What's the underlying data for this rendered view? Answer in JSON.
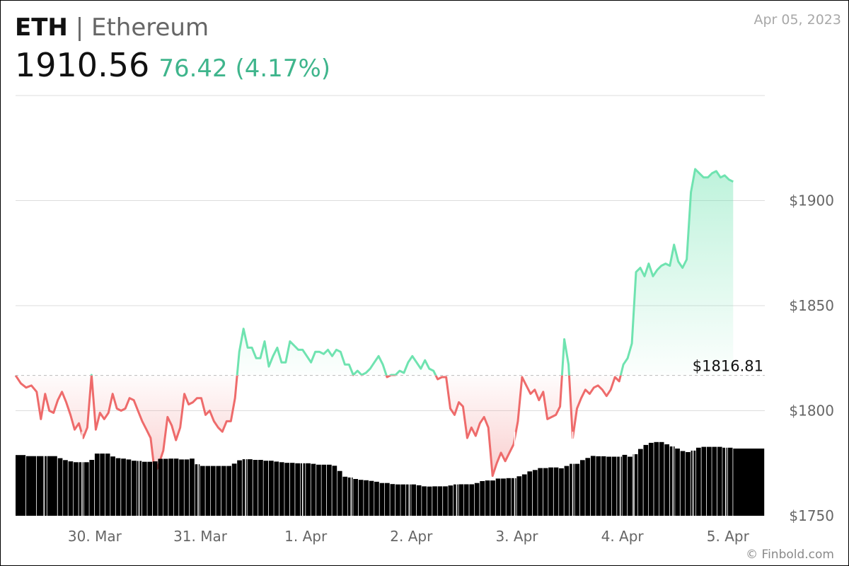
{
  "header": {
    "symbol": "ETH",
    "separator": "|",
    "name": "Ethereum",
    "price": "1910.56",
    "change": "76.42 (4.17%)",
    "date": "Apr 05, 2023"
  },
  "footer": {
    "credit": "© Finbold.com"
  },
  "colors": {
    "up": "#6fe3b0",
    "down": "#ee6b6b",
    "volume": "#000000",
    "grid": "#dddddd",
    "axis_text": "#666666"
  },
  "chart_data": {
    "type": "line",
    "ylim": [
      1750,
      1950
    ],
    "y_ticks": [
      1750,
      1800,
      1850,
      1900
    ],
    "y_tick_labels": [
      "$1750",
      "$1800",
      "$1850",
      "$1900"
    ],
    "x_range": [
      0,
      7.1
    ],
    "x_ticks": [
      0.75,
      1.75,
      2.75,
      3.75,
      4.75,
      5.75,
      6.75
    ],
    "x_tick_labels": [
      "30. Mar",
      "31. Mar",
      "1. Apr",
      "2. Apr",
      "3. Apr",
      "4. Apr",
      "5. Apr"
    ],
    "baseline": 1816.81,
    "baseline_label": "$1816.81",
    "price_series": [
      [
        0.0,
        1816.8
      ],
      [
        0.05,
        1813
      ],
      [
        0.1,
        1811
      ],
      [
        0.15,
        1812
      ],
      [
        0.2,
        1809
      ],
      [
        0.24,
        1796
      ],
      [
        0.28,
        1808
      ],
      [
        0.32,
        1800
      ],
      [
        0.36,
        1799
      ],
      [
        0.4,
        1805
      ],
      [
        0.44,
        1809
      ],
      [
        0.48,
        1804
      ],
      [
        0.52,
        1798
      ],
      [
        0.56,
        1791
      ],
      [
        0.6,
        1794
      ],
      [
        0.64,
        1787
      ],
      [
        0.68,
        1792
      ],
      [
        0.72,
        1817
      ],
      [
        0.76,
        1791
      ],
      [
        0.8,
        1799
      ],
      [
        0.84,
        1796
      ],
      [
        0.88,
        1799
      ],
      [
        0.92,
        1808
      ],
      [
        0.96,
        1801
      ],
      [
        1.0,
        1800
      ],
      [
        1.04,
        1801
      ],
      [
        1.08,
        1806
      ],
      [
        1.12,
        1805
      ],
      [
        1.16,
        1800
      ],
      [
        1.2,
        1795
      ],
      [
        1.24,
        1791
      ],
      [
        1.28,
        1787
      ],
      [
        1.32,
        1770
      ],
      [
        1.36,
        1775
      ],
      [
        1.4,
        1781
      ],
      [
        1.44,
        1797
      ],
      [
        1.48,
        1793
      ],
      [
        1.52,
        1786
      ],
      [
        1.56,
        1792
      ],
      [
        1.6,
        1808
      ],
      [
        1.64,
        1803
      ],
      [
        1.68,
        1804
      ],
      [
        1.72,
        1806
      ],
      [
        1.76,
        1806
      ],
      [
        1.8,
        1798
      ],
      [
        1.84,
        1800
      ],
      [
        1.88,
        1795
      ],
      [
        1.92,
        1792
      ],
      [
        1.96,
        1790
      ],
      [
        2.0,
        1795
      ],
      [
        2.04,
        1795
      ],
      [
        2.08,
        1806
      ],
      [
        2.12,
        1828
      ],
      [
        2.16,
        1839
      ],
      [
        2.2,
        1830
      ],
      [
        2.24,
        1830
      ],
      [
        2.28,
        1825
      ],
      [
        2.32,
        1825
      ],
      [
        2.36,
        1833
      ],
      [
        2.4,
        1821
      ],
      [
        2.44,
        1826
      ],
      [
        2.48,
        1830
      ],
      [
        2.52,
        1823
      ],
      [
        2.56,
        1823
      ],
      [
        2.6,
        1833
      ],
      [
        2.64,
        1831
      ],
      [
        2.68,
        1829
      ],
      [
        2.72,
        1829
      ],
      [
        2.76,
        1826
      ],
      [
        2.8,
        1823
      ],
      [
        2.84,
        1828
      ],
      [
        2.88,
        1828
      ],
      [
        2.92,
        1827
      ],
      [
        2.96,
        1829
      ],
      [
        3.0,
        1826
      ],
      [
        3.04,
        1829
      ],
      [
        3.08,
        1828
      ],
      [
        3.12,
        1822
      ],
      [
        3.16,
        1822
      ],
      [
        3.2,
        1817
      ],
      [
        3.24,
        1819
      ],
      [
        3.28,
        1817
      ],
      [
        3.32,
        1818
      ],
      [
        3.36,
        1820
      ],
      [
        3.4,
        1823
      ],
      [
        3.44,
        1826
      ],
      [
        3.48,
        1822
      ],
      [
        3.52,
        1816
      ],
      [
        3.56,
        1817
      ],
      [
        3.6,
        1817
      ],
      [
        3.64,
        1819
      ],
      [
        3.68,
        1818
      ],
      [
        3.72,
        1823
      ],
      [
        3.76,
        1826
      ],
      [
        3.8,
        1823
      ],
      [
        3.84,
        1820
      ],
      [
        3.88,
        1824
      ],
      [
        3.92,
        1820
      ],
      [
        3.96,
        1819
      ],
      [
        4.0,
        1815
      ],
      [
        4.04,
        1816
      ],
      [
        4.08,
        1816
      ],
      [
        4.12,
        1801
      ],
      [
        4.16,
        1798
      ],
      [
        4.2,
        1804
      ],
      [
        4.24,
        1802
      ],
      [
        4.28,
        1787
      ],
      [
        4.32,
        1792
      ],
      [
        4.36,
        1788
      ],
      [
        4.4,
        1794
      ],
      [
        4.44,
        1797
      ],
      [
        4.48,
        1792
      ],
      [
        4.52,
        1769
      ],
      [
        4.56,
        1775
      ],
      [
        4.6,
        1780
      ],
      [
        4.64,
        1776
      ],
      [
        4.68,
        1780
      ],
      [
        4.72,
        1784
      ],
      [
        4.76,
        1795
      ],
      [
        4.8,
        1816
      ],
      [
        4.84,
        1812
      ],
      [
        4.88,
        1808
      ],
      [
        4.92,
        1810
      ],
      [
        4.96,
        1805
      ],
      [
        5.0,
        1809
      ],
      [
        5.04,
        1796
      ],
      [
        5.08,
        1797
      ],
      [
        5.12,
        1798
      ],
      [
        5.16,
        1802
      ],
      [
        5.2,
        1834
      ],
      [
        5.24,
        1822
      ],
      [
        5.28,
        1787
      ],
      [
        5.32,
        1801
      ],
      [
        5.36,
        1806
      ],
      [
        5.4,
        1810
      ],
      [
        5.44,
        1808
      ],
      [
        5.48,
        1811
      ],
      [
        5.52,
        1812
      ],
      [
        5.56,
        1810
      ],
      [
        5.6,
        1807
      ],
      [
        5.64,
        1810
      ],
      [
        5.68,
        1816
      ],
      [
        5.72,
        1814
      ],
      [
        5.76,
        1822
      ],
      [
        5.8,
        1825
      ],
      [
        5.84,
        1832
      ],
      [
        5.88,
        1866
      ],
      [
        5.92,
        1868
      ],
      [
        5.96,
        1864
      ],
      [
        6.0,
        1870
      ],
      [
        6.04,
        1864
      ],
      [
        6.08,
        1867
      ],
      [
        6.12,
        1869
      ],
      [
        6.16,
        1870
      ],
      [
        6.2,
        1869
      ],
      [
        6.24,
        1879
      ],
      [
        6.28,
        1871
      ],
      [
        6.32,
        1868
      ],
      [
        6.36,
        1872
      ],
      [
        6.4,
        1904
      ],
      [
        6.44,
        1915
      ],
      [
        6.48,
        1913
      ],
      [
        6.52,
        1911
      ],
      [
        6.56,
        1911
      ],
      [
        6.6,
        1913
      ],
      [
        6.64,
        1914
      ],
      [
        6.68,
        1911
      ],
      [
        6.72,
        1912
      ],
      [
        6.76,
        1910
      ],
      [
        6.8,
        1909
      ]
    ],
    "volume_series": [
      [
        0.0,
        28.9
      ],
      [
        0.1,
        28.4
      ],
      [
        0.2,
        28.4
      ],
      [
        0.3,
        28.4
      ],
      [
        0.4,
        27.4
      ],
      [
        0.45,
        26.5
      ],
      [
        0.5,
        25.9
      ],
      [
        0.55,
        25.5
      ],
      [
        0.6,
        25.5
      ],
      [
        0.65,
        25.5
      ],
      [
        0.7,
        26.6
      ],
      [
        0.75,
        29.6
      ],
      [
        0.8,
        29.6
      ],
      [
        0.85,
        29.6
      ],
      [
        0.9,
        28.2
      ],
      [
        0.95,
        27.4
      ],
      [
        1.0,
        27.2
      ],
      [
        1.05,
        26.8
      ],
      [
        1.1,
        26.2
      ],
      [
        1.15,
        26.1
      ],
      [
        1.2,
        25.7
      ],
      [
        1.25,
        25.7
      ],
      [
        1.3,
        25.9
      ],
      [
        1.35,
        27.1
      ],
      [
        1.4,
        27.1
      ],
      [
        1.45,
        27.2
      ],
      [
        1.5,
        27.2
      ],
      [
        1.55,
        26.8
      ],
      [
        1.6,
        26.8
      ],
      [
        1.65,
        27.2
      ],
      [
        1.7,
        24.5
      ],
      [
        1.75,
        23.7
      ],
      [
        1.8,
        23.7
      ],
      [
        1.85,
        23.7
      ],
      [
        1.9,
        23.7
      ],
      [
        1.95,
        23.7
      ],
      [
        2.0,
        23.7
      ],
      [
        2.05,
        24.8
      ],
      [
        2.1,
        26.4
      ],
      [
        2.15,
        26.9
      ],
      [
        2.2,
        26.9
      ],
      [
        2.25,
        26.6
      ],
      [
        2.3,
        26.6
      ],
      [
        2.35,
        26.2
      ],
      [
        2.4,
        26.2
      ],
      [
        2.45,
        25.8
      ],
      [
        2.5,
        25.5
      ],
      [
        2.55,
        25.2
      ],
      [
        2.6,
        25.2
      ],
      [
        2.65,
        25.0
      ],
      [
        2.7,
        25.0
      ],
      [
        2.75,
        25.0
      ],
      [
        2.8,
        24.7
      ],
      [
        2.85,
        24.3
      ],
      [
        2.9,
        24.3
      ],
      [
        2.95,
        24.3
      ],
      [
        3.0,
        23.8
      ],
      [
        3.05,
        21.3
      ],
      [
        3.1,
        18.6
      ],
      [
        3.15,
        18.2
      ],
      [
        3.2,
        17.5
      ],
      [
        3.25,
        17.1
      ],
      [
        3.3,
        16.9
      ],
      [
        3.35,
        16.6
      ],
      [
        3.4,
        16.2
      ],
      [
        3.45,
        15.6
      ],
      [
        3.5,
        15.6
      ],
      [
        3.55,
        15.1
      ],
      [
        3.6,
        14.9
      ],
      [
        3.65,
        14.9
      ],
      [
        3.7,
        14.9
      ],
      [
        3.75,
        14.9
      ],
      [
        3.8,
        14.5
      ],
      [
        3.85,
        14.0
      ],
      [
        3.9,
        13.9
      ],
      [
        3.95,
        14.0
      ],
      [
        4.0,
        14.0
      ],
      [
        4.05,
        14.0
      ],
      [
        4.1,
        14.4
      ],
      [
        4.15,
        14.9
      ],
      [
        4.2,
        15.0
      ],
      [
        4.25,
        15.0
      ],
      [
        4.3,
        15.0
      ],
      [
        4.35,
        15.6
      ],
      [
        4.4,
        16.5
      ],
      [
        4.45,
        16.8
      ],
      [
        4.5,
        16.8
      ],
      [
        4.55,
        17.7
      ],
      [
        4.6,
        17.7
      ],
      [
        4.65,
        17.9
      ],
      [
        4.7,
        17.9
      ],
      [
        4.75,
        18.8
      ],
      [
        4.8,
        19.7
      ],
      [
        4.85,
        21.1
      ],
      [
        4.9,
        21.8
      ],
      [
        4.95,
        22.7
      ],
      [
        5.0,
        22.7
      ],
      [
        5.05,
        23.0
      ],
      [
        5.1,
        23.0
      ],
      [
        5.15,
        22.6
      ],
      [
        5.2,
        23.7
      ],
      [
        5.25,
        24.7
      ],
      [
        5.3,
        24.7
      ],
      [
        5.35,
        26.5
      ],
      [
        5.4,
        27.5
      ],
      [
        5.45,
        28.5
      ],
      [
        5.5,
        28.3
      ],
      [
        5.55,
        28.3
      ],
      [
        5.6,
        28.1
      ],
      [
        5.65,
        28.1
      ],
      [
        5.7,
        28.1
      ],
      [
        5.75,
        29.0
      ],
      [
        5.8,
        28.1
      ],
      [
        5.85,
        29.3
      ],
      [
        5.9,
        31.8
      ],
      [
        5.95,
        33.7
      ],
      [
        6.0,
        34.7
      ],
      [
        6.05,
        35.1
      ],
      [
        6.1,
        35.1
      ],
      [
        6.15,
        34.0
      ],
      [
        6.2,
        33.0
      ],
      [
        6.25,
        32.0
      ],
      [
        6.3,
        30.8
      ],
      [
        6.35,
        30.3
      ],
      [
        6.4,
        31.0
      ],
      [
        6.45,
        32.4
      ],
      [
        6.5,
        32.8
      ],
      [
        6.55,
        32.8
      ],
      [
        6.6,
        32.8
      ],
      [
        6.65,
        32.8
      ],
      [
        6.7,
        32.4
      ],
      [
        6.75,
        32.4
      ],
      [
        6.8,
        32.0
      ]
    ]
  }
}
